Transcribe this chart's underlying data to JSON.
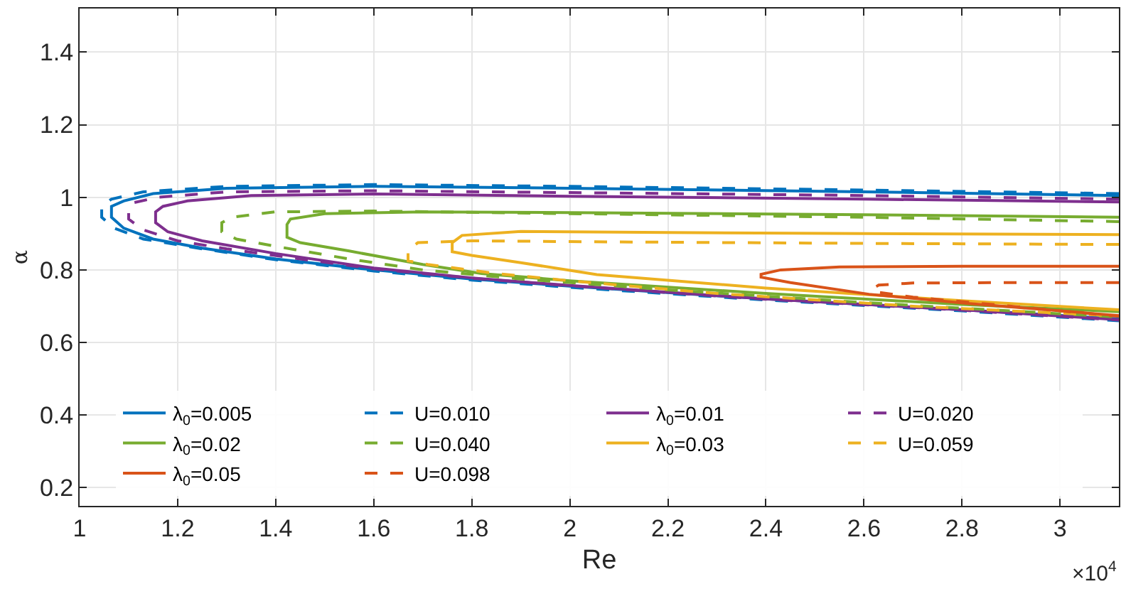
{
  "chart_data": {
    "type": "line",
    "xlabel": "Re",
    "ylabel": "α",
    "annotations": [
      "×10$^{4}$"
    ],
    "xlim": [
      1,
      3.12
    ],
    "xticks": [
      1,
      1.2,
      1.4,
      1.6,
      1.8,
      2,
      2.2,
      2.4,
      2.6,
      2.8,
      3
    ],
    "ylim": [
      0.15,
      1.52
    ],
    "yticks": [
      0.2,
      0.4,
      0.6,
      0.8,
      1,
      1.2,
      1.4
    ],
    "grid": true,
    "legend": "bottom",
    "series": [
      {
        "name": "λ$_{0}$=0.005",
        "color": "#0072bd",
        "line_style": "solid",
        "x": [
          3.12,
          2.6,
          2.0,
          1.6,
          1.3,
          1.15,
          1.09,
          1.065,
          1.065,
          1.09,
          1.15,
          1.25,
          1.4,
          1.6,
          1.8,
          2.0,
          2.4,
          2.8,
          3.12
        ],
        "values": [
          1.005,
          1.015,
          1.025,
          1.03,
          1.025,
          1.01,
          0.99,
          0.975,
          0.945,
          0.915,
          0.885,
          0.86,
          0.83,
          0.8,
          0.775,
          0.755,
          0.72,
          0.69,
          0.665
        ]
      },
      {
        "name": "U=0.010",
        "color": "#0072bd",
        "line_style": "dashed",
        "x": [
          3.12,
          2.6,
          2.0,
          1.6,
          1.3,
          1.13,
          1.065,
          1.045,
          1.045,
          1.07,
          1.13,
          1.25,
          1.4,
          1.6,
          1.8,
          2.0,
          2.4,
          2.8,
          3.12
        ],
        "values": [
          1.01,
          1.02,
          1.03,
          1.035,
          1.03,
          1.015,
          0.995,
          0.975,
          0.945,
          0.915,
          0.885,
          0.858,
          0.828,
          0.797,
          0.772,
          0.752,
          0.717,
          0.687,
          0.66
        ]
      },
      {
        "name": "λ$_{0}$=0.01",
        "color": "#7e2f8e",
        "line_style": "solid",
        "x": [
          3.12,
          2.6,
          2.0,
          1.6,
          1.35,
          1.22,
          1.17,
          1.155,
          1.155,
          1.18,
          1.25,
          1.4,
          1.6,
          1.8,
          2.0,
          2.4,
          2.8,
          3.12
        ],
        "values": [
          0.987,
          0.995,
          1.003,
          1.009,
          1.005,
          0.99,
          0.975,
          0.96,
          0.93,
          0.905,
          0.88,
          0.845,
          0.805,
          0.778,
          0.757,
          0.72,
          0.69,
          0.663
        ]
      },
      {
        "name": "U=0.020",
        "color": "#7e2f8e",
        "line_style": "dashed",
        "x": [
          3.12,
          2.6,
          2.0,
          1.6,
          1.3,
          1.16,
          1.11,
          1.1,
          1.1,
          1.13,
          1.2,
          1.3,
          1.45,
          1.6,
          1.8,
          2.0,
          2.4,
          2.8,
          3.12
        ],
        "values": [
          0.995,
          1.005,
          1.013,
          1.018,
          1.015,
          1.0,
          0.985,
          0.965,
          0.94,
          0.91,
          0.88,
          0.858,
          0.83,
          0.803,
          0.777,
          0.756,
          0.719,
          0.689,
          0.662
        ]
      },
      {
        "name": "λ$_{0}$=0.02",
        "color": "#77ac30",
        "line_style": "solid",
        "x": [
          3.12,
          2.6,
          2.0,
          1.7,
          1.5,
          1.43,
          1.423,
          1.423,
          1.45,
          1.55,
          1.7,
          1.82,
          2.0,
          2.4,
          2.8,
          3.12
        ],
        "values": [
          0.945,
          0.952,
          0.958,
          0.96,
          0.955,
          0.94,
          0.925,
          0.89,
          0.875,
          0.852,
          0.815,
          0.79,
          0.77,
          0.735,
          0.705,
          0.685
        ]
      },
      {
        "name": "U=0.040",
        "color": "#77ac30",
        "line_style": "dashed",
        "x": [
          3.12,
          2.6,
          2.0,
          1.6,
          1.4,
          1.31,
          1.29,
          1.29,
          1.32,
          1.4,
          1.55,
          1.7,
          1.9,
          2.2,
          2.6,
          3.12
        ],
        "values": [
          0.933,
          0.945,
          0.955,
          0.962,
          0.96,
          0.945,
          0.93,
          0.905,
          0.885,
          0.865,
          0.83,
          0.8,
          0.775,
          0.745,
          0.71,
          0.67
        ]
      },
      {
        "name": "λ$_{0}$=0.03",
        "color": "#edb120",
        "line_style": "solid",
        "x": [
          3.12,
          2.6,
          2.2,
          1.9,
          1.78,
          1.76,
          1.76,
          1.8,
          1.9,
          2.055,
          2.4,
          2.8,
          3.12
        ],
        "values": [
          0.897,
          0.9,
          0.903,
          0.906,
          0.895,
          0.875,
          0.85,
          0.84,
          0.82,
          0.787,
          0.75,
          0.715,
          0.69
        ]
      },
      {
        "name": "U=0.059",
        "color": "#edb120",
        "line_style": "dashed",
        "x": [
          3.12,
          2.6,
          2.1,
          1.8,
          1.69,
          1.67,
          1.67,
          1.71,
          1.85,
          2.0,
          2.3,
          2.7,
          3.12
        ],
        "values": [
          0.87,
          0.873,
          0.877,
          0.88,
          0.875,
          0.855,
          0.825,
          0.815,
          0.79,
          0.77,
          0.735,
          0.7,
          0.673
        ]
      },
      {
        "name": "λ$_{0}$=0.05",
        "color": "#d95319",
        "line_style": "solid",
        "x": [
          3.12,
          2.8,
          2.55,
          2.43,
          2.39,
          2.39,
          2.45,
          2.61,
          2.81,
          3.12
        ],
        "values": [
          0.81,
          0.81,
          0.808,
          0.8,
          0.788,
          0.78,
          0.765,
          0.733,
          0.708,
          0.674
        ]
      },
      {
        "name": "U=0.098",
        "color": "#d95319",
        "line_style": "dashed",
        "x": [
          3.12,
          2.9,
          2.7,
          2.63,
          2.62,
          2.62,
          2.7,
          2.9,
          3.12
        ],
        "values": [
          0.765,
          0.765,
          0.764,
          0.758,
          0.75,
          0.74,
          0.725,
          0.7,
          0.672
        ]
      }
    ]
  }
}
